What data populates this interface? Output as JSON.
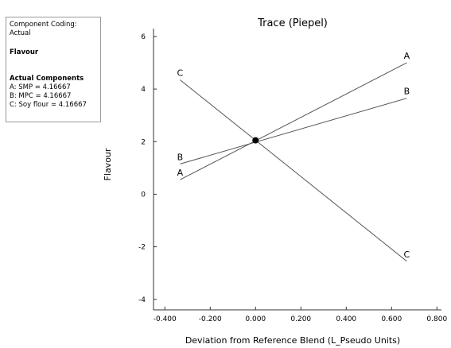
{
  "legend": {
    "coding": "Component Coding: Actual",
    "response": "Flavour",
    "components_title": "Actual Components",
    "components": [
      "A: SMP = 4.16667",
      "B: MPC = 4.16667",
      "C: Soy flour = 4.16667"
    ]
  },
  "chart_data": {
    "type": "line",
    "title": "Trace (Piepel)",
    "xlabel": "Deviation from Reference Blend (L_Pseudo Units)",
    "ylabel": "Flavour",
    "xlim": [
      -0.45,
      0.82
    ],
    "ylim": [
      -4.4,
      6.3
    ],
    "xticks": [
      -0.4,
      -0.2,
      0.0,
      0.2,
      0.4,
      0.6,
      0.8
    ],
    "xtick_labels": [
      "-0.400",
      "-0.200",
      "0.000",
      "0.200",
      "0.400",
      "0.600",
      "0.800"
    ],
    "yticks": [
      -4,
      -2,
      0,
      2,
      4,
      6
    ],
    "ytick_labels": [
      "-4",
      "-2",
      "0",
      "2",
      "4",
      "6"
    ],
    "series": [
      {
        "name": "A",
        "x": [
          -0.333,
          0.0,
          0.667
        ],
        "y": [
          0.55,
          2.05,
          5.0
        ]
      },
      {
        "name": "B",
        "x": [
          -0.333,
          0.0,
          0.667
        ],
        "y": [
          1.15,
          2.05,
          3.65
        ]
      },
      {
        "name": "C",
        "x": [
          -0.333,
          0.0,
          0.667
        ],
        "y": [
          4.35,
          2.05,
          -2.55
        ]
      }
    ],
    "reference_point": {
      "x": 0.0,
      "y": 2.05
    },
    "grid": false,
    "line_color": "#555555"
  }
}
